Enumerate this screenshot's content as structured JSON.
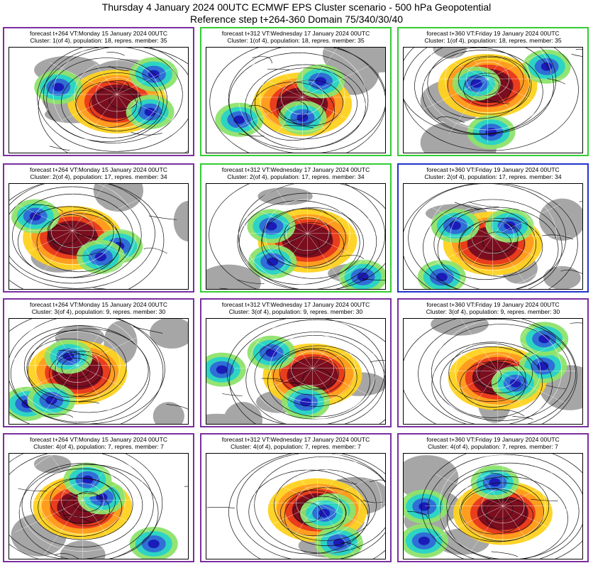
{
  "title": {
    "line1": "Thursday 4 January 2024 00UTC ECMWF EPS Cluster scenario - 500 hPa Geopotential",
    "line2": "Reference step t+264-360 Domain 75/340/30/40"
  },
  "colors": {
    "purple": "#7b2fa0",
    "green": "#33cc33",
    "blue": "#2233cc"
  },
  "columns": [
    "forecast t+264 VT:Monday 15 January 2024 00UTC",
    "forecast t+312 VT:Wednesday 17 January 2024 00UTC",
    "forecast t+360 VT:Friday 19 January 2024 00UTC"
  ],
  "clusters": [
    "Cluster: 1(of 4), population: 18, repres. member: 35",
    "Cluster: 2(of 4), population: 17, repres. member: 34",
    "Cluster: 3(of 4), population: 9, repres. member: 30",
    "Cluster: 4(of 4), population: 7, repres. member: 7"
  ],
  "border_colors": [
    [
      "purple",
      "green",
      "green"
    ],
    [
      "purple",
      "green",
      "blue"
    ],
    [
      "purple",
      "purple",
      "purple"
    ],
    [
      "purple",
      "purple",
      "purple"
    ]
  ]
}
